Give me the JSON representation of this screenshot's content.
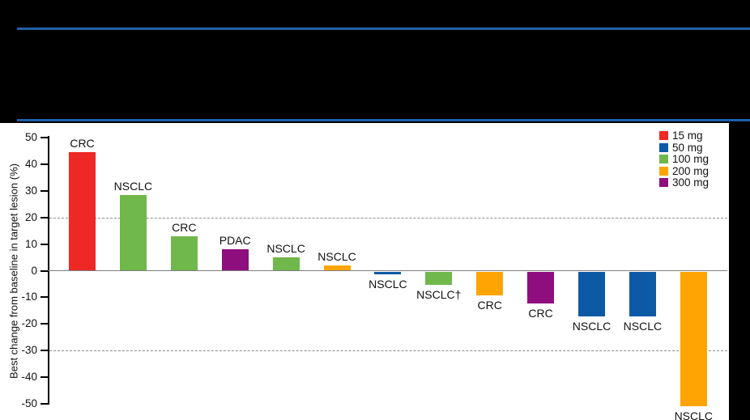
{
  "header": {
    "rule_color": "#1F5FA8",
    "background": "#000000"
  },
  "chart_data": {
    "type": "bar",
    "subtype": "waterfall",
    "title": "",
    "xlabel": "",
    "ylabel": "Best change from baseline in target lesion (%)",
    "ylim": [
      -50,
      50
    ],
    "yticks": [
      50,
      40,
      30,
      20,
      10,
      0,
      -10,
      -20,
      -30,
      -40,
      -50
    ],
    "reference_lines": [
      20,
      -30
    ],
    "grid": "dashed horizontal reference lines at +20 and -30; solid gray line at 0",
    "legend_position": "top-right",
    "legend": [
      {
        "label": "15 mg",
        "color": "#EE2824"
      },
      {
        "label": "50 mg",
        "color": "#0C5AA5"
      },
      {
        "label": "100 mg",
        "color": "#70B74C"
      },
      {
        "label": "200 mg",
        "color": "#FFA402"
      },
      {
        "label": "300 mg",
        "color": "#8E0E7E"
      }
    ],
    "bars": [
      {
        "label": "CRC",
        "dose": "15 mg",
        "value": 44.5
      },
      {
        "label": "NSCLC",
        "dose": "100 mg",
        "value": 28.5
      },
      {
        "label": "CRC",
        "dose": "100 mg",
        "value": 13
      },
      {
        "label": "PDAC",
        "dose": "300 mg",
        "value": 8
      },
      {
        "label": "NSCLC",
        "dose": "100 mg",
        "value": 5
      },
      {
        "label": "NSCLC",
        "dose": "200 mg",
        "value": 2
      },
      {
        "label": "NSCLC",
        "dose": "50 mg",
        "value": -1
      },
      {
        "label": "NSCLC†",
        "dose": "100 mg",
        "value": -5
      },
      {
        "label": "CRC",
        "dose": "200 mg",
        "value": -9
      },
      {
        "label": "CRC",
        "dose": "300 mg",
        "value": -12
      },
      {
        "label": "NSCLC",
        "dose": "50 mg",
        "value": -17
      },
      {
        "label": "NSCLC",
        "dose": "50 mg",
        "value": -17
      },
      {
        "label": "NSCLC",
        "dose": "200 mg",
        "value": -50.5
      }
    ]
  }
}
